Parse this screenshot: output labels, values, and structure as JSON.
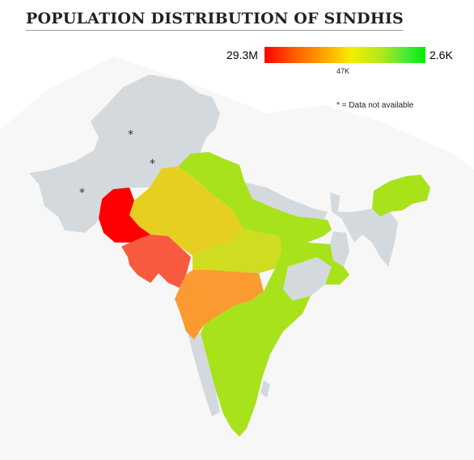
{
  "title": "POPULATION DISTRIBUTION OF SINDHIS",
  "legend": {
    "max_label": "29.3M",
    "mid_label": "47K",
    "min_label": "2.6K",
    "gradient_colors": [
      "#ff0000",
      "#ff5a00",
      "#ffb000",
      "#f4ee00",
      "#b4e81a",
      "#4be83b",
      "#00ee00"
    ]
  },
  "note": {
    "marker": "*",
    "text": "= Data not available"
  },
  "map": {
    "no_data_marker": "*",
    "no_data_color": "#d4d9dd",
    "regions": [
      {
        "id": "sindh",
        "color": "#ff0000"
      },
      {
        "id": "gujarat",
        "color": "#f85a40"
      },
      {
        "id": "maharashtra",
        "color": "#fa9a31"
      },
      {
        "id": "rajasthan",
        "color": "#e7cf22"
      },
      {
        "id": "madhya-pradesh",
        "color": "#d0dc20"
      },
      {
        "id": "north-india",
        "color": "#a8e21a"
      },
      {
        "id": "east-india",
        "color": "#a8e21a"
      },
      {
        "id": "south-india",
        "color": "#a8e21a"
      },
      {
        "id": "northeast-india",
        "color": "#a8e21a"
      }
    ]
  }
}
